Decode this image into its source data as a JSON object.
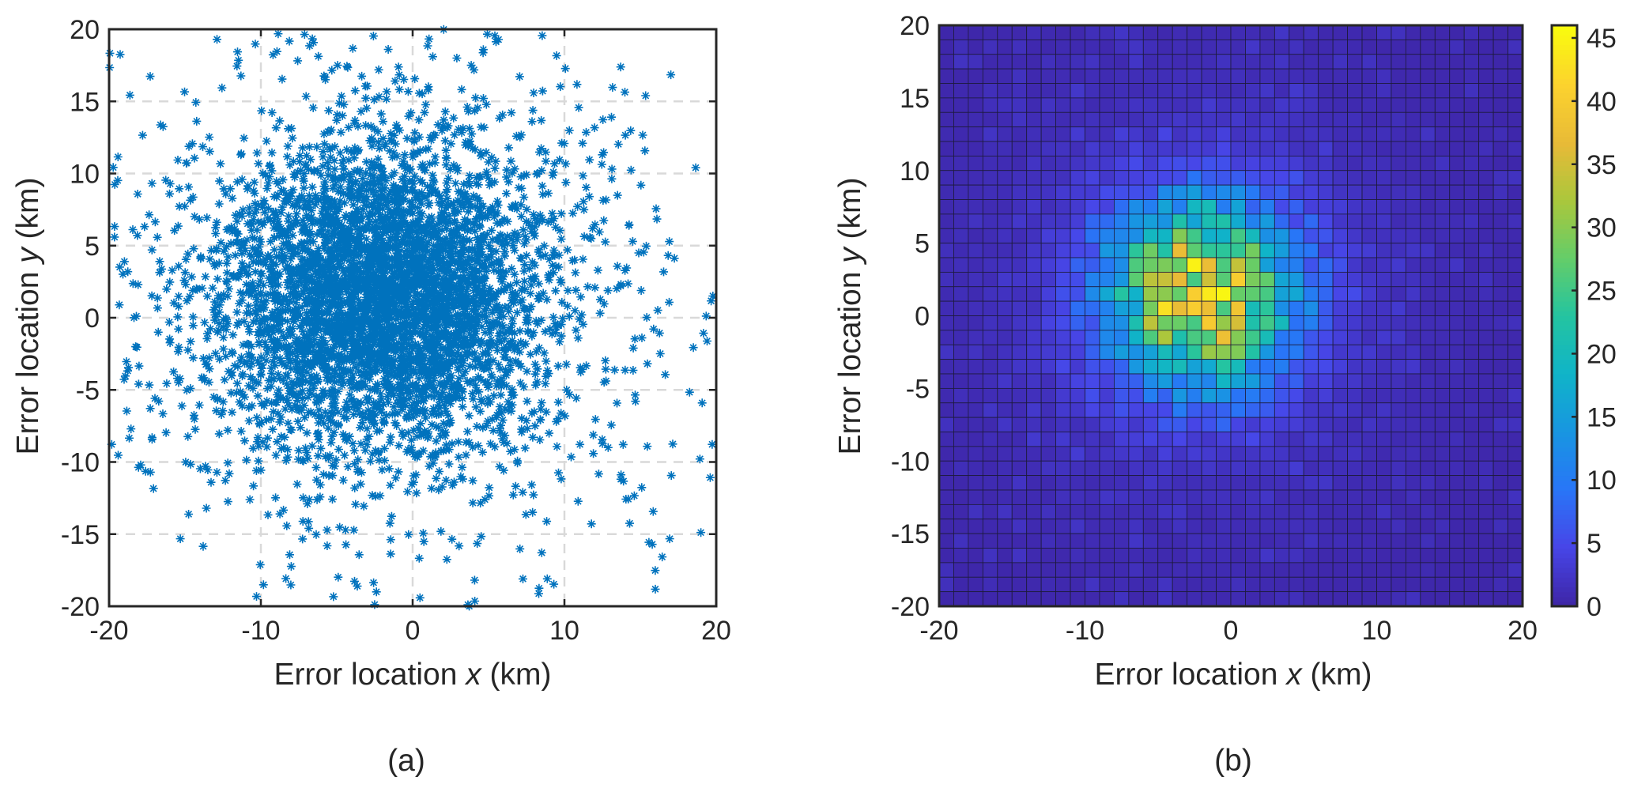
{
  "chart_data": [
    {
      "type": "scatter",
      "panel_label": "(a)",
      "xlabel_pre": "Error location ",
      "xlabel_var": "x",
      "xlabel_post": " (km)",
      "ylabel_pre": "Error location ",
      "ylabel_var": "y",
      "ylabel_post": " (km)",
      "xlim": [
        -20,
        20
      ],
      "ylim": [
        -20,
        20
      ],
      "xticks": [
        "-20",
        "-10",
        "0",
        "10",
        "20"
      ],
      "yticks": [
        "20",
        "15",
        "10",
        "5",
        "0",
        "-5",
        "-10",
        "-15",
        "-20"
      ],
      "grid": true,
      "marker": "asterisk",
      "color": "#0072bd",
      "distribution": {
        "center": [
          -2,
          1.5
        ],
        "core_spread_km": 5,
        "outer_spread_km": 10,
        "approx_point_count": 5000
      }
    },
    {
      "type": "heatmap",
      "panel_label": "(b)",
      "xlabel_pre": "Error location ",
      "xlabel_var": "x",
      "xlabel_post": " (km)",
      "ylabel_pre": "Error location ",
      "ylabel_var": "y",
      "ylabel_post": " (km)",
      "xlim": [
        -20,
        20
      ],
      "ylim": [
        -20,
        20
      ],
      "xticks": [
        "-20",
        "-10",
        "0",
        "10",
        "20"
      ],
      "yticks": [
        "20",
        "15",
        "10",
        "5",
        "0",
        "-5",
        "-10",
        "-15",
        "-20"
      ],
      "bins_per_axis": 40,
      "peak_location": [
        -2,
        1.5
      ],
      "peak_count": 46,
      "colormap": "parula",
      "colorbar": {
        "min": 0,
        "max": 46,
        "ticks": [
          "45",
          "40",
          "35",
          "30",
          "25",
          "20",
          "15",
          "10",
          "5",
          "0"
        ],
        "tick_values": [
          45,
          40,
          35,
          30,
          25,
          20,
          15,
          10,
          5,
          0
        ]
      }
    }
  ]
}
